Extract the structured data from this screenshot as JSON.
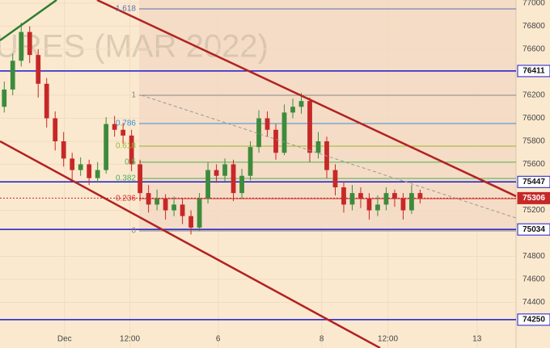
{
  "chart_data": {
    "type": "candlestick",
    "watermark": "URES (MAR 2022)",
    "x": [
      0,
      1,
      2,
      3,
      4,
      5,
      6,
      7,
      8,
      9,
      10,
      11,
      12,
      13,
      14,
      15,
      16,
      17,
      18,
      19,
      20,
      21,
      22,
      23,
      24,
      25,
      26,
      27,
      28,
      29,
      30,
      31,
      32,
      33,
      34,
      35,
      36,
      37,
      38,
      39,
      40,
      41,
      42,
      43,
      44,
      45,
      46,
      47,
      48,
      49
    ],
    "open": [
      76100,
      76250,
      76500,
      76750,
      76550,
      76300,
      76000,
      75800,
      75650,
      75550,
      75600,
      75480,
      75550,
      75950,
      75900,
      75850,
      75600,
      75350,
      75250,
      75300,
      75200,
      75250,
      75150,
      75050,
      75300,
      75550,
      75500,
      75600,
      75350,
      75500,
      75750,
      76000,
      75900,
      75700,
      76050,
      76100,
      76150,
      75700,
      75800,
      75550,
      75400,
      75250,
      75350,
      75300,
      75200,
      75250,
      75350,
      75300,
      75200,
      75350
    ],
    "high": [
      76320,
      76560,
      76830,
      76800,
      76600,
      76350,
      76060,
      75880,
      75700,
      75660,
      75640,
      75620,
      76010,
      76020,
      75960,
      75900,
      75640,
      75420,
      75380,
      75340,
      75320,
      75300,
      75200,
      75350,
      75620,
      75600,
      75650,
      75640,
      75560,
      75800,
      76070,
      76060,
      75950,
      76120,
      76170,
      76220,
      76180,
      75880,
      75840,
      75600,
      75450,
      75420,
      75400,
      75350,
      75330,
      75400,
      75380,
      75350,
      75420,
      75380
    ],
    "low": [
      76050,
      76200,
      76450,
      76480,
      76180,
      75920,
      75720,
      75580,
      75470,
      75500,
      75420,
      75440,
      75520,
      75840,
      75780,
      75540,
      75280,
      75180,
      75200,
      75120,
      75150,
      75080,
      74990,
      75020,
      75260,
      75440,
      75450,
      75280,
      75300,
      75460,
      75700,
      75840,
      75640,
      75680,
      76000,
      76040,
      75620,
      75650,
      75480,
      75330,
      75180,
      75200,
      75220,
      75120,
      75150,
      75200,
      75230,
      75120,
      75170,
      75260
    ],
    "close": [
      76250,
      76500,
      76750,
      76550,
      76300,
      76000,
      75800,
      75650,
      75550,
      75600,
      75480,
      75550,
      75950,
      75900,
      75850,
      75600,
      75350,
      75250,
      75300,
      75200,
      75250,
      75150,
      75050,
      75300,
      75550,
      75500,
      75600,
      75350,
      75500,
      75750,
      76000,
      75900,
      75700,
      76050,
      76100,
      76150,
      75700,
      75800,
      75550,
      75400,
      75250,
      75350,
      75300,
      75200,
      75250,
      75350,
      75300,
      75200,
      75350,
      75306
    ],
    "up_color": "#3d8b3d",
    "down_color": "#c62828",
    "xlim": [
      -0.5,
      60.3
    ],
    "xticks": [
      {
        "value": 7.1,
        "label": "Dec"
      },
      {
        "value": 14.8,
        "label": "12:00"
      },
      {
        "value": 25.2,
        "label": "6"
      },
      {
        "value": 37.4,
        "label": "8"
      },
      {
        "value": 45.2,
        "label": "12:00"
      },
      {
        "value": 55.7,
        "label": "13"
      }
    ],
    "ylim": [
      74000,
      77000
    ],
    "yticks": [
      74400,
      74600,
      74800,
      75200,
      75600,
      75800,
      76000,
      76200,
      76600,
      76800,
      77000
    ],
    "fib_levels": [
      {
        "label": "1.618",
        "value": 76951,
        "color": "#5a6fb0"
      },
      {
        "label": "1",
        "value": 76200,
        "color": "#888888"
      },
      {
        "label": "0.786",
        "value": 75954,
        "color": "#3a8fd0"
      },
      {
        "label": "0.618",
        "value": 75758,
        "color": "#9ab82a"
      },
      {
        "label": "0.5",
        "value": 75618,
        "color": "#4caf50"
      },
      {
        "label": "0.382",
        "value": 75477,
        "color": "#4caf50"
      },
      {
        "label": "0.236",
        "value": 75302,
        "color": "#d32f2f"
      },
      {
        "label": "0",
        "value": 75021,
        "color": "#888888"
      }
    ],
    "levels": [
      {
        "value": 76411,
        "color": "#1a1acc"
      },
      {
        "value": 75447,
        "color": "#1a1acc"
      },
      {
        "value": 75306,
        "color": "#c62828",
        "tag_fill": "#c62828"
      },
      {
        "value": 75034,
        "color": "#1a1acc"
      },
      {
        "value": 74250,
        "color": "#1a1acc"
      }
    ]
  }
}
